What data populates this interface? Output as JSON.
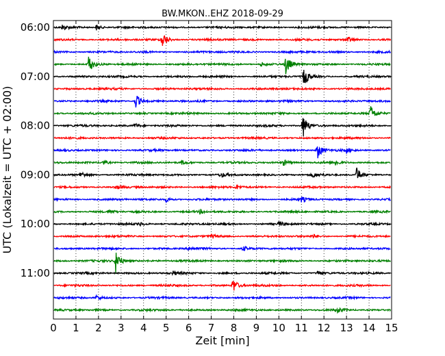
{
  "chart_data": {
    "type": "line",
    "title": "BW.MKON..EHZ 2018-09-29",
    "xlabel": "Zeit  [min]",
    "ylabel": "UTC (Lokalzeit = UTC + 02:00)",
    "xlim": [
      0,
      15
    ],
    "x_ticks": [
      "0",
      "1",
      "2",
      "3",
      "4",
      "5",
      "6",
      "7",
      "8",
      "9",
      "10",
      "11",
      "12",
      "13",
      "14",
      "15"
    ],
    "y_tick_labels": [
      "06:00",
      "07:00",
      "08:00",
      "09:00",
      "10:00",
      "11:00"
    ],
    "grid": "vertical dotted",
    "trace_interval_minutes": 15,
    "colors": [
      "#000000",
      "#ff0000",
      "#0000ff",
      "#008000"
    ],
    "series": [
      {
        "start": "06:00",
        "color": "#000000",
        "events": [
          [
            0.4,
            0.5
          ],
          [
            1.9,
            0.5
          ]
        ]
      },
      {
        "start": "06:15",
        "color": "#ff0000",
        "events": [
          [
            4.8,
            1.5
          ],
          [
            13.0,
            0.6
          ]
        ]
      },
      {
        "start": "06:30",
        "color": "#0000ff",
        "events": []
      },
      {
        "start": "06:45",
        "color": "#008000",
        "events": [
          [
            1.55,
            1.5
          ],
          [
            10.3,
            1.7
          ],
          [
            9.2,
            0.4
          ]
        ]
      },
      {
        "start": "07:00",
        "color": "#000000",
        "events": [
          [
            11.1,
            1.8
          ]
        ]
      },
      {
        "start": "07:15",
        "color": "#ff0000",
        "events": []
      },
      {
        "start": "07:30",
        "color": "#0000ff",
        "events": [
          [
            3.65,
            1.2
          ]
        ]
      },
      {
        "start": "07:45",
        "color": "#008000",
        "events": [
          [
            14.05,
            1.4
          ]
        ]
      },
      {
        "start": "08:00",
        "color": "#000000",
        "events": [
          [
            11.05,
            2.2
          ],
          [
            3.6,
            0.4
          ]
        ]
      },
      {
        "start": "08:15",
        "color": "#ff0000",
        "events": []
      },
      {
        "start": "08:30",
        "color": "#0000ff",
        "events": [
          [
            11.7,
            1.5
          ],
          [
            13.0,
            0.4
          ]
        ]
      },
      {
        "start": "08:45",
        "color": "#008000",
        "events": [
          [
            2.2,
            0.4
          ],
          [
            10.2,
            0.5
          ],
          [
            12.5,
            0.4
          ],
          [
            5.7,
            0.35
          ]
        ]
      },
      {
        "start": "09:00",
        "color": "#000000",
        "events": [
          [
            13.45,
            1.3
          ],
          [
            1.2,
            0.5
          ],
          [
            7.4,
            0.4
          ],
          [
            11.5,
            0.4
          ]
        ]
      },
      {
        "start": "09:15",
        "color": "#ff0000",
        "events": [
          [
            8.1,
            0.4
          ],
          [
            2.8,
            0.3
          ]
        ]
      },
      {
        "start": "09:30",
        "color": "#0000ff",
        "events": [
          [
            5.0,
            0.4
          ],
          [
            11.0,
            0.4
          ]
        ]
      },
      {
        "start": "09:45",
        "color": "#008000",
        "events": [
          [
            2.45,
            0.4
          ],
          [
            6.5,
            0.3
          ]
        ]
      },
      {
        "start": "10:00",
        "color": "#000000",
        "events": [
          [
            10.0,
            0.45
          ],
          [
            3.8,
            0.3
          ]
        ]
      },
      {
        "start": "10:15",
        "color": "#ff0000",
        "events": [
          [
            7.0,
            0.3
          ],
          [
            11.5,
            0.3
          ]
        ]
      },
      {
        "start": "10:30",
        "color": "#0000ff",
        "events": [
          [
            8.4,
            0.4
          ],
          [
            6.0,
            0.3
          ]
        ]
      },
      {
        "start": "10:45",
        "color": "#008000",
        "events": [
          [
            2.75,
            2.2
          ]
        ]
      },
      {
        "start": "11:00",
        "color": "#000000",
        "events": [
          [
            11.7,
            0.4
          ],
          [
            5.3,
            0.3
          ]
        ]
      },
      {
        "start": "11:15",
        "color": "#ff0000",
        "events": [
          [
            7.95,
            1.3
          ]
        ]
      },
      {
        "start": "11:30",
        "color": "#0000ff",
        "events": [
          [
            1.9,
            0.4
          ]
        ]
      },
      {
        "start": "11:45",
        "color": "#008000",
        "events": [
          [
            12.6,
            0.4
          ]
        ]
      }
    ]
  }
}
